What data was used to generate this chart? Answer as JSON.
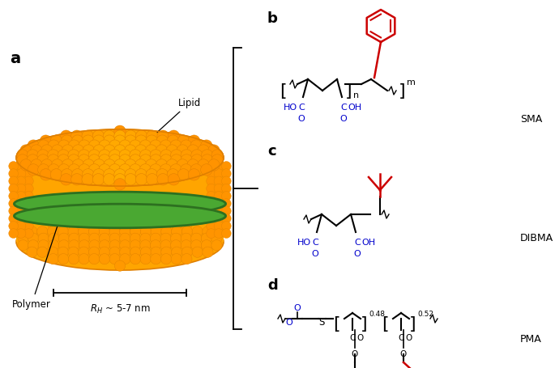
{
  "orange": "#FFA500",
  "orange_dark": "#E08000",
  "green": "#4aA832",
  "green_dark": "#2d7020",
  "black": "#000000",
  "blue": "#0000CC",
  "red": "#CC0000",
  "bg": "#FFFFFF",
  "panel_a": "a",
  "panel_b": "b",
  "panel_c": "c",
  "panel_d": "d",
  "lipid_txt": "Lipid",
  "polymer_txt": "Polymer",
  "rh_txt": "$R_H$ ~ 5-7 nm",
  "sma_txt": "SMA",
  "dibma_txt": "DIBMA",
  "pma_txt": "PMA"
}
